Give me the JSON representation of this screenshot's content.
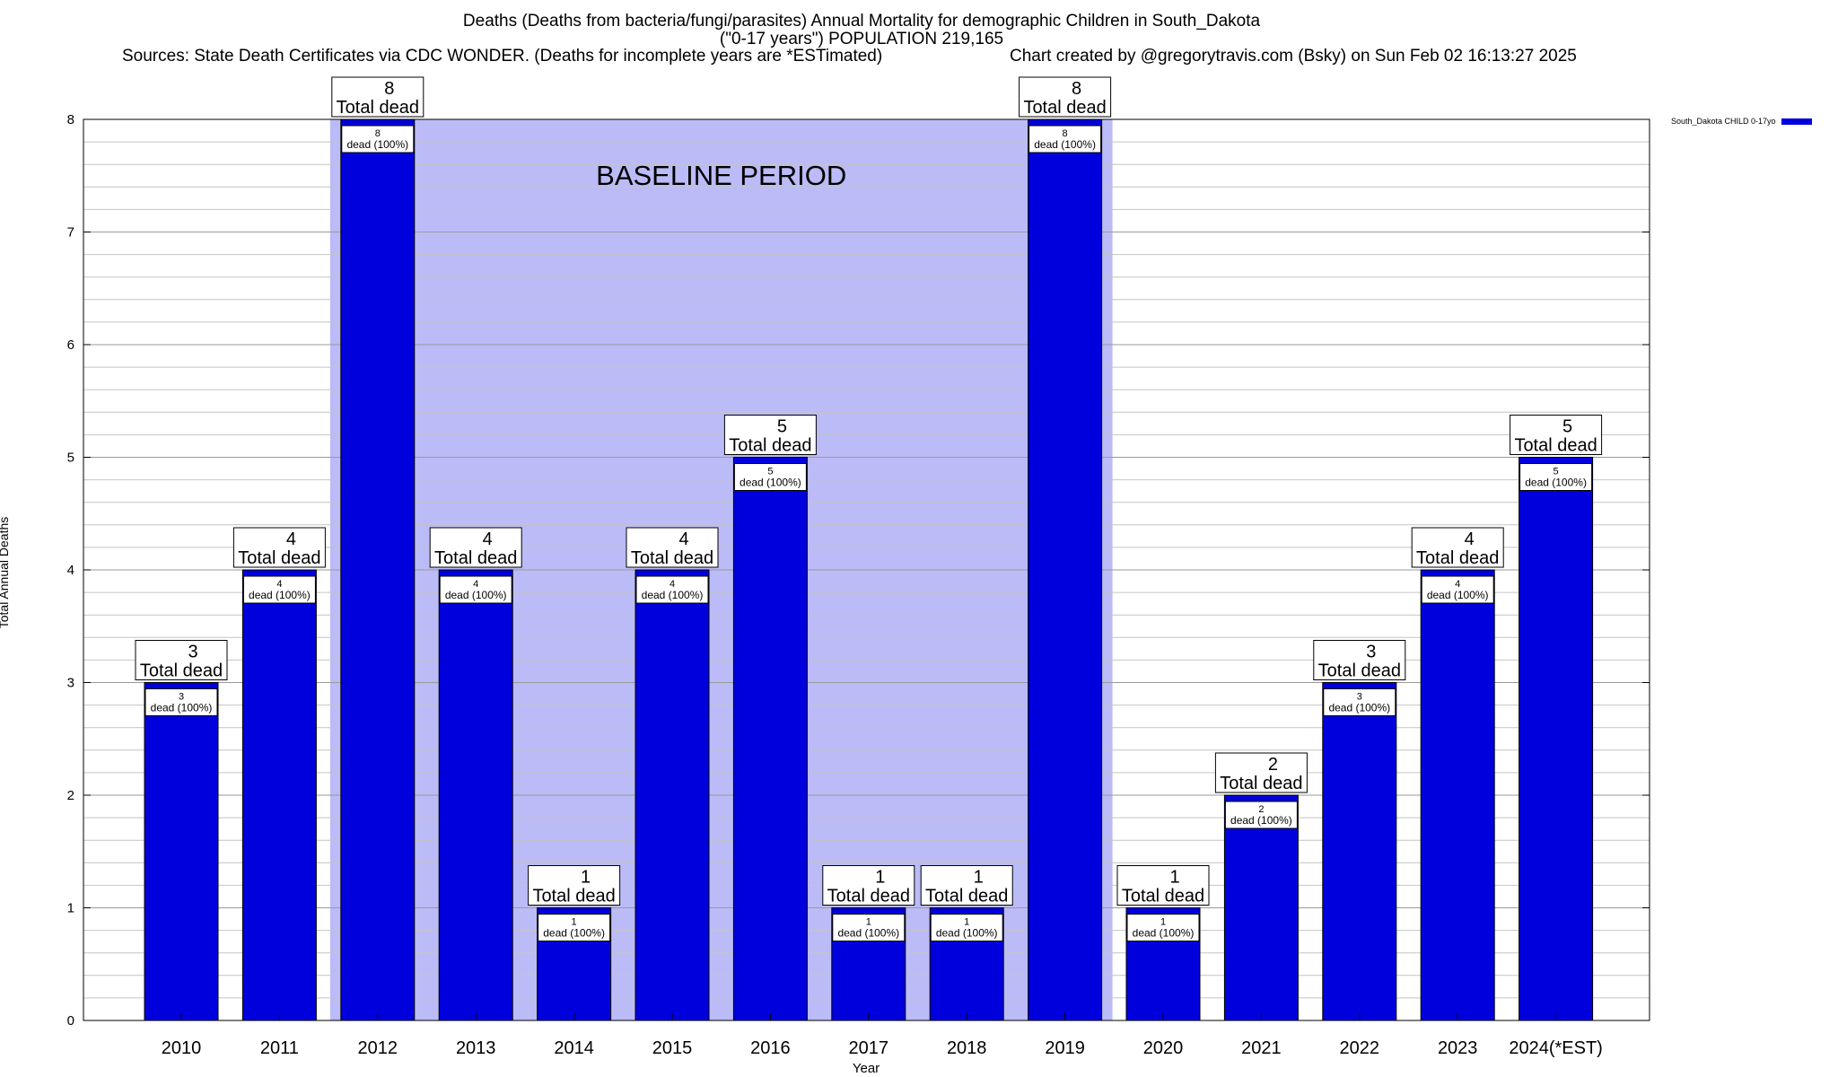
{
  "chart_data": {
    "type": "bar",
    "title_line1": "Deaths (Deaths from bacteria/fungi/parasites) Annual Mortality for demographic Children in South_Dakota",
    "title_line2": "(\"0-17 years\") POPULATION 219,165",
    "sources": "Sources: State Death Certificates via CDC WONDER. (Deaths for incomplete years are *ESTimated)",
    "credit": "Chart created by @gregorytravis.com (Bsky) on Sun Feb 02 16:13:27 2025",
    "xlabel": "Year",
    "ylabel": "Total Annual Deaths",
    "ylim": [
      0,
      8
    ],
    "y_ticks": [
      0,
      1,
      2,
      3,
      4,
      5,
      6,
      7,
      8
    ],
    "y_minor_step": 0.2,
    "grid": true,
    "legend": {
      "label": "South_Dakota CHILD 0-17yo",
      "position": "top-right",
      "color": "#0000dd"
    },
    "baseline": {
      "label": "BASELINE PERIOD",
      "from": "2012",
      "to": "2019",
      "color": "#bbbbf7"
    },
    "categories": [
      "2010",
      "2011",
      "2012",
      "2013",
      "2014",
      "2015",
      "2016",
      "2017",
      "2018",
      "2019",
      "2020",
      "2021",
      "2022",
      "2023",
      "2024(*EST)"
    ],
    "series": [
      {
        "name": "South_Dakota CHILD 0-17yo",
        "values": [
          3,
          4,
          8,
          4,
          1,
          4,
          5,
          1,
          1,
          8,
          1,
          2,
          3,
          4,
          5
        ]
      }
    ],
    "top_label_suffix": "Total dead",
    "inner_label_suffix": "dead (100%)",
    "bar_color": "#0000dd"
  }
}
